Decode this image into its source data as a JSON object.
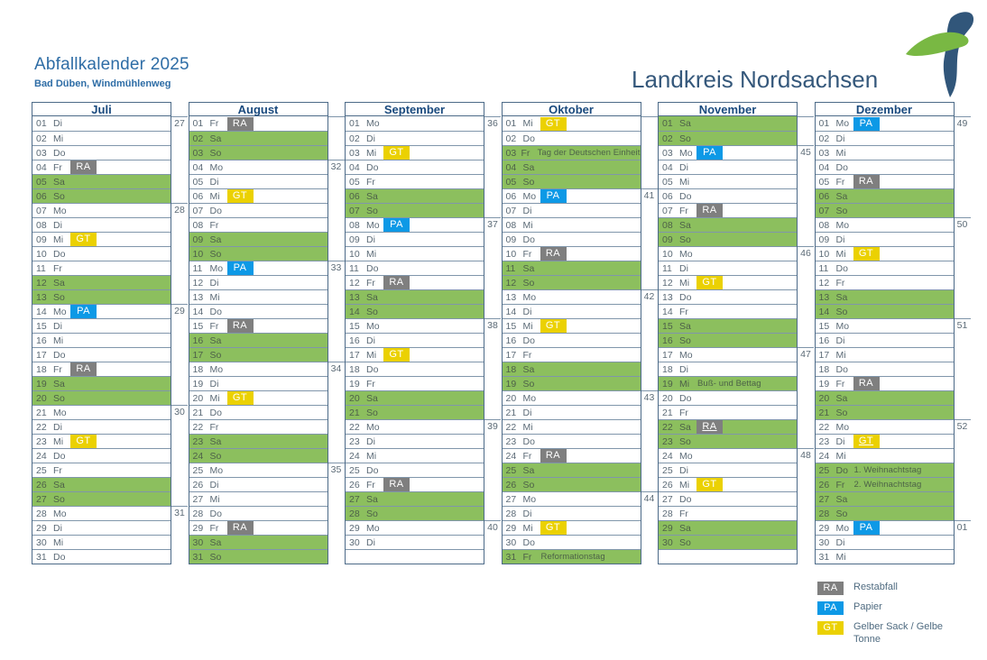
{
  "header": {
    "title": "Abfallkalender 2025",
    "subtitle": "Bad Düben, Windmühlenweg"
  },
  "logo": {
    "text": "Landkreis Nordsachsen"
  },
  "colors": {
    "weekend_green": "#8cbf5e",
    "badge_RA": "#7f7f7f",
    "badge_PA": "#0d99e6",
    "badge_GT": "#ebd102",
    "title_blue": "#2e6da6"
  },
  "legend": {
    "items": [
      {
        "code": "RA",
        "label": "Restabfall"
      },
      {
        "code": "PA",
        "label": "Papier"
      },
      {
        "code": "GT",
        "label": "Gelber Sack / Gelbe Tonne"
      }
    ]
  },
  "calendar": {
    "rows_per_month": 31,
    "months": [
      {
        "name": "Juli",
        "weeks": [
          [
            0,
            "27"
          ],
          [
            6,
            "28"
          ],
          [
            13,
            "29"
          ],
          [
            20,
            "30"
          ],
          [
            27,
            "31"
          ]
        ],
        "days": [
          {
            "n": "01",
            "w": "Di"
          },
          {
            "n": "02",
            "w": "Mi"
          },
          {
            "n": "03",
            "w": "Do"
          },
          {
            "n": "04",
            "w": "Fr",
            "b": "RA"
          },
          {
            "n": "05",
            "w": "Sa",
            "g": true
          },
          {
            "n": "06",
            "w": "So",
            "g": true
          },
          {
            "n": "07",
            "w": "Mo"
          },
          {
            "n": "08",
            "w": "Di"
          },
          {
            "n": "09",
            "w": "Mi",
            "b": "GT"
          },
          {
            "n": "10",
            "w": "Do"
          },
          {
            "n": "11",
            "w": "Fr"
          },
          {
            "n": "12",
            "w": "Sa",
            "g": true
          },
          {
            "n": "13",
            "w": "So",
            "g": true
          },
          {
            "n": "14",
            "w": "Mo",
            "b": "PA"
          },
          {
            "n": "15",
            "w": "Di"
          },
          {
            "n": "16",
            "w": "Mi"
          },
          {
            "n": "17",
            "w": "Do"
          },
          {
            "n": "18",
            "w": "Fr",
            "b": "RA"
          },
          {
            "n": "19",
            "w": "Sa",
            "g": true
          },
          {
            "n": "20",
            "w": "So",
            "g": true
          },
          {
            "n": "21",
            "w": "Mo"
          },
          {
            "n": "22",
            "w": "Di"
          },
          {
            "n": "23",
            "w": "Mi",
            "b": "GT"
          },
          {
            "n": "24",
            "w": "Do"
          },
          {
            "n": "25",
            "w": "Fr"
          },
          {
            "n": "26",
            "w": "Sa",
            "g": true
          },
          {
            "n": "27",
            "w": "So",
            "g": true
          },
          {
            "n": "28",
            "w": "Mo"
          },
          {
            "n": "29",
            "w": "Di"
          },
          {
            "n": "30",
            "w": "Mi"
          },
          {
            "n": "31",
            "w": "Do"
          }
        ]
      },
      {
        "name": "August",
        "weeks": [
          [
            3,
            "32"
          ],
          [
            10,
            "33"
          ],
          [
            17,
            "34"
          ],
          [
            24,
            "35"
          ]
        ],
        "days": [
          {
            "n": "01",
            "w": "Fr",
            "b": "RA"
          },
          {
            "n": "02",
            "w": "Sa",
            "g": true
          },
          {
            "n": "03",
            "w": "So",
            "g": true
          },
          {
            "n": "04",
            "w": "Mo"
          },
          {
            "n": "05",
            "w": "Di"
          },
          {
            "n": "06",
            "w": "Mi",
            "b": "GT"
          },
          {
            "n": "07",
            "w": "Do"
          },
          {
            "n": "08",
            "w": "Fr"
          },
          {
            "n": "09",
            "w": "Sa",
            "g": true
          },
          {
            "n": "10",
            "w": "So",
            "g": true
          },
          {
            "n": "11",
            "w": "Mo",
            "b": "PA"
          },
          {
            "n": "12",
            "w": "Di"
          },
          {
            "n": "13",
            "w": "Mi"
          },
          {
            "n": "14",
            "w": "Do"
          },
          {
            "n": "15",
            "w": "Fr",
            "b": "RA"
          },
          {
            "n": "16",
            "w": "Sa",
            "g": true
          },
          {
            "n": "17",
            "w": "So",
            "g": true
          },
          {
            "n": "18",
            "w": "Mo"
          },
          {
            "n": "19",
            "w": "Di"
          },
          {
            "n": "20",
            "w": "Mi",
            "b": "GT"
          },
          {
            "n": "21",
            "w": "Do"
          },
          {
            "n": "22",
            "w": "Fr"
          },
          {
            "n": "23",
            "w": "Sa",
            "g": true
          },
          {
            "n": "24",
            "w": "So",
            "g": true
          },
          {
            "n": "25",
            "w": "Mo"
          },
          {
            "n": "26",
            "w": "Di"
          },
          {
            "n": "27",
            "w": "Mi"
          },
          {
            "n": "28",
            "w": "Do"
          },
          {
            "n": "29",
            "w": "Fr",
            "b": "RA"
          },
          {
            "n": "30",
            "w": "Sa",
            "g": true
          },
          {
            "n": "31",
            "w": "So",
            "g": true
          }
        ]
      },
      {
        "name": "September",
        "weeks": [
          [
            0,
            "36"
          ],
          [
            7,
            "37"
          ],
          [
            14,
            "38"
          ],
          [
            21,
            "39"
          ],
          [
            28,
            "40"
          ]
        ],
        "days": [
          {
            "n": "01",
            "w": "Mo"
          },
          {
            "n": "02",
            "w": "Di"
          },
          {
            "n": "03",
            "w": "Mi",
            "b": "GT"
          },
          {
            "n": "04",
            "w": "Do"
          },
          {
            "n": "05",
            "w": "Fr"
          },
          {
            "n": "06",
            "w": "Sa",
            "g": true
          },
          {
            "n": "07",
            "w": "So",
            "g": true
          },
          {
            "n": "08",
            "w": "Mo",
            "b": "PA"
          },
          {
            "n": "09",
            "w": "Di"
          },
          {
            "n": "10",
            "w": "Mi"
          },
          {
            "n": "11",
            "w": "Do"
          },
          {
            "n": "12",
            "w": "Fr",
            "b": "RA"
          },
          {
            "n": "13",
            "w": "Sa",
            "g": true
          },
          {
            "n": "14",
            "w": "So",
            "g": true
          },
          {
            "n": "15",
            "w": "Mo"
          },
          {
            "n": "16",
            "w": "Di"
          },
          {
            "n": "17",
            "w": "Mi",
            "b": "GT"
          },
          {
            "n": "18",
            "w": "Do"
          },
          {
            "n": "19",
            "w": "Fr"
          },
          {
            "n": "20",
            "w": "Sa",
            "g": true
          },
          {
            "n": "21",
            "w": "So",
            "g": true
          },
          {
            "n": "22",
            "w": "Mo"
          },
          {
            "n": "23",
            "w": "Di"
          },
          {
            "n": "24",
            "w": "Mi"
          },
          {
            "n": "25",
            "w": "Do"
          },
          {
            "n": "26",
            "w": "Fr",
            "b": "RA"
          },
          {
            "n": "27",
            "w": "Sa",
            "g": true
          },
          {
            "n": "28",
            "w": "So",
            "g": true
          },
          {
            "n": "29",
            "w": "Mo"
          },
          {
            "n": "30",
            "w": "Di"
          }
        ]
      },
      {
        "name": "Oktober",
        "weeks": [
          [
            5,
            "41"
          ],
          [
            12,
            "42"
          ],
          [
            19,
            "43"
          ],
          [
            26,
            "44"
          ]
        ],
        "days": [
          {
            "n": "01",
            "w": "Mi",
            "b": "GT"
          },
          {
            "n": "02",
            "w": "Do"
          },
          {
            "n": "03",
            "w": "Fr",
            "g": true,
            "t": "Tag der Deutschen Einheit"
          },
          {
            "n": "04",
            "w": "Sa",
            "g": true
          },
          {
            "n": "05",
            "w": "So",
            "g": true
          },
          {
            "n": "06",
            "w": "Mo",
            "b": "PA"
          },
          {
            "n": "07",
            "w": "Di"
          },
          {
            "n": "08",
            "w": "Mi"
          },
          {
            "n": "09",
            "w": "Do"
          },
          {
            "n": "10",
            "w": "Fr",
            "b": "RA"
          },
          {
            "n": "11",
            "w": "Sa",
            "g": true
          },
          {
            "n": "12",
            "w": "So",
            "g": true
          },
          {
            "n": "13",
            "w": "Mo"
          },
          {
            "n": "14",
            "w": "Di"
          },
          {
            "n": "15",
            "w": "Mi",
            "b": "GT"
          },
          {
            "n": "16",
            "w": "Do"
          },
          {
            "n": "17",
            "w": "Fr"
          },
          {
            "n": "18",
            "w": "Sa",
            "g": true
          },
          {
            "n": "19",
            "w": "So",
            "g": true
          },
          {
            "n": "20",
            "w": "Mo"
          },
          {
            "n": "21",
            "w": "Di"
          },
          {
            "n": "22",
            "w": "Mi"
          },
          {
            "n": "23",
            "w": "Do"
          },
          {
            "n": "24",
            "w": "Fr",
            "b": "RA"
          },
          {
            "n": "25",
            "w": "Sa",
            "g": true
          },
          {
            "n": "26",
            "w": "So",
            "g": true
          },
          {
            "n": "27",
            "w": "Mo"
          },
          {
            "n": "28",
            "w": "Di"
          },
          {
            "n": "29",
            "w": "Mi",
            "b": "GT"
          },
          {
            "n": "30",
            "w": "Do"
          },
          {
            "n": "31",
            "w": "Fr",
            "g": true,
            "t": "Reformationstag"
          }
        ]
      },
      {
        "name": "November",
        "weeks": [
          [
            2,
            "45"
          ],
          [
            9,
            "46"
          ],
          [
            16,
            "47"
          ],
          [
            23,
            "48"
          ]
        ],
        "days": [
          {
            "n": "01",
            "w": "Sa",
            "g": true
          },
          {
            "n": "02",
            "w": "So",
            "g": true
          },
          {
            "n": "03",
            "w": "Mo",
            "b": "PA"
          },
          {
            "n": "04",
            "w": "Di"
          },
          {
            "n": "05",
            "w": "Mi"
          },
          {
            "n": "06",
            "w": "Do"
          },
          {
            "n": "07",
            "w": "Fr",
            "b": "RA"
          },
          {
            "n": "08",
            "w": "Sa",
            "g": true
          },
          {
            "n": "09",
            "w": "So",
            "g": true
          },
          {
            "n": "10",
            "w": "Mo"
          },
          {
            "n": "11",
            "w": "Di"
          },
          {
            "n": "12",
            "w": "Mi",
            "b": "GT"
          },
          {
            "n": "13",
            "w": "Do"
          },
          {
            "n": "14",
            "w": "Fr"
          },
          {
            "n": "15",
            "w": "Sa",
            "g": true
          },
          {
            "n": "16",
            "w": "So",
            "g": true
          },
          {
            "n": "17",
            "w": "Mo"
          },
          {
            "n": "18",
            "w": "Di"
          },
          {
            "n": "19",
            "w": "Mi",
            "g": true,
            "t": "Buß- und Bettag"
          },
          {
            "n": "20",
            "w": "Do"
          },
          {
            "n": "21",
            "w": "Fr"
          },
          {
            "n": "22",
            "w": "Sa",
            "g": true,
            "b": "RA",
            "u": true
          },
          {
            "n": "23",
            "w": "So",
            "g": true
          },
          {
            "n": "24",
            "w": "Mo"
          },
          {
            "n": "25",
            "w": "Di"
          },
          {
            "n": "26",
            "w": "Mi",
            "b": "GT"
          },
          {
            "n": "27",
            "w": "Do"
          },
          {
            "n": "28",
            "w": "Fr"
          },
          {
            "n": "29",
            "w": "Sa",
            "g": true
          },
          {
            "n": "30",
            "w": "So",
            "g": true
          }
        ]
      },
      {
        "name": "Dezember",
        "weeks": [
          [
            0,
            "49"
          ],
          [
            7,
            "50"
          ],
          [
            14,
            "51"
          ],
          [
            21,
            "52"
          ],
          [
            28,
            "01"
          ]
        ],
        "days": [
          {
            "n": "01",
            "w": "Mo",
            "b": "PA"
          },
          {
            "n": "02",
            "w": "Di"
          },
          {
            "n": "03",
            "w": "Mi"
          },
          {
            "n": "04",
            "w": "Do"
          },
          {
            "n": "05",
            "w": "Fr",
            "b": "RA"
          },
          {
            "n": "06",
            "w": "Sa",
            "g": true
          },
          {
            "n": "07",
            "w": "So",
            "g": true
          },
          {
            "n": "08",
            "w": "Mo"
          },
          {
            "n": "09",
            "w": "Di"
          },
          {
            "n": "10",
            "w": "Mi",
            "b": "GT"
          },
          {
            "n": "11",
            "w": "Do"
          },
          {
            "n": "12",
            "w": "Fr"
          },
          {
            "n": "13",
            "w": "Sa",
            "g": true
          },
          {
            "n": "14",
            "w": "So",
            "g": true
          },
          {
            "n": "15",
            "w": "Mo"
          },
          {
            "n": "16",
            "w": "Di"
          },
          {
            "n": "17",
            "w": "Mi"
          },
          {
            "n": "18",
            "w": "Do"
          },
          {
            "n": "19",
            "w": "Fr",
            "b": "RA"
          },
          {
            "n": "20",
            "w": "Sa",
            "g": true
          },
          {
            "n": "21",
            "w": "So",
            "g": true
          },
          {
            "n": "22",
            "w": "Mo"
          },
          {
            "n": "23",
            "w": "Di",
            "b": "GT",
            "u": true
          },
          {
            "n": "24",
            "w": "Mi"
          },
          {
            "n": "25",
            "w": "Do",
            "g": true,
            "t": "1. Weihnachtstag"
          },
          {
            "n": "26",
            "w": "Fr",
            "g": true,
            "t": "2. Weihnachtstag"
          },
          {
            "n": "27",
            "w": "Sa",
            "g": true
          },
          {
            "n": "28",
            "w": "So",
            "g": true
          },
          {
            "n": "29",
            "w": "Mo",
            "b": "PA"
          },
          {
            "n": "30",
            "w": "Di"
          },
          {
            "n": "31",
            "w": "Mi"
          }
        ]
      }
    ]
  }
}
